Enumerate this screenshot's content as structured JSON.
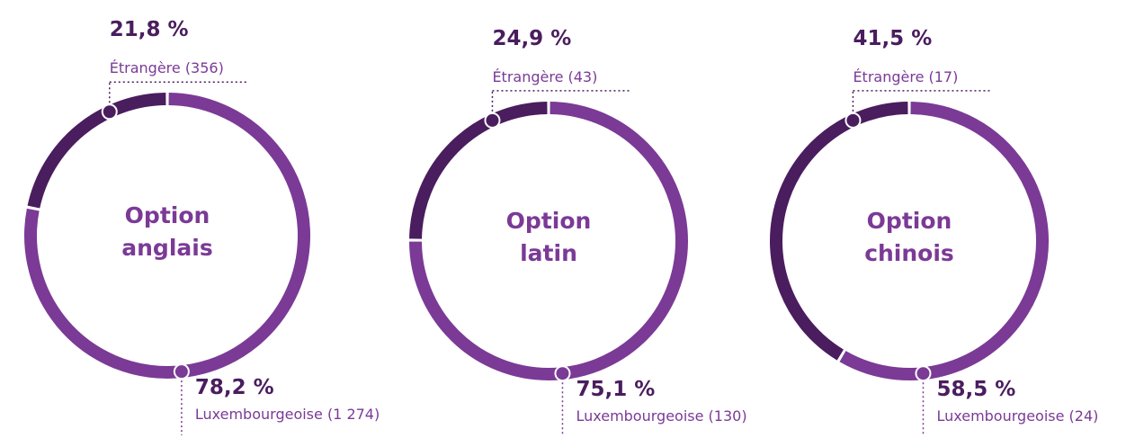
{
  "chart_data": [
    {
      "type": "donut",
      "title": "Option anglais",
      "categories": [
        "Étrangère (356)",
        "Luxembourgeoise (1 274)"
      ],
      "values": [
        21.8,
        78.2
      ],
      "value_labels": [
        "21,8 %",
        "78,2 %"
      ],
      "colors": [
        "#4a1d5e",
        "#7b3a96"
      ]
    },
    {
      "type": "donut",
      "title": "Option latin",
      "categories": [
        "Étrangère (43)",
        "Luxembourgeoise (130)"
      ],
      "values": [
        24.9,
        75.1
      ],
      "value_labels": [
        "24,9 %",
        "75,1 %"
      ],
      "colors": [
        "#4a1d5e",
        "#7b3a96"
      ]
    },
    {
      "type": "donut",
      "title": "Option chinois",
      "categories": [
        "Étrangère (17)",
        "Luxembourgeoise (24)"
      ],
      "values": [
        41.5,
        58.5
      ],
      "value_labels": [
        "41,5 %",
        "58,5 %"
      ],
      "colors": [
        "#4a1d5e",
        "#7b3a96"
      ]
    }
  ]
}
